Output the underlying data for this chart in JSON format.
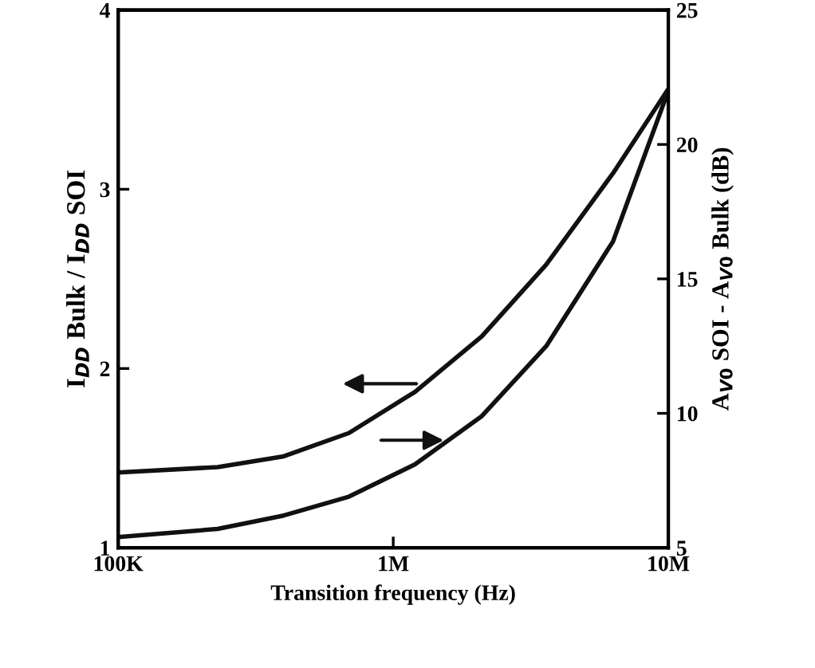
{
  "chart_data": {
    "type": "line",
    "xlabel": "Transition frequency (Hz)",
    "ylabel": "I$_{DD}$ Bulk / I$_{DD}$ SOI",
    "y2label": "A$_{V0}$ SOI - A$_{V0}$ Bulk (dB)",
    "log": "x",
    "xlim": [
      100000,
      10000000
    ],
    "xticks": [
      {
        "value": 100000,
        "label": "100K"
      },
      {
        "value": 1000000,
        "label": "1M"
      },
      {
        "value": 10000000,
        "label": "10M"
      }
    ],
    "ylim": [
      1,
      4
    ],
    "yticks": [
      1,
      2,
      3,
      4
    ],
    "y2lim": [
      5,
      25
    ],
    "y2ticks": [
      5,
      10,
      15,
      20,
      25
    ],
    "grid": false,
    "legend": false,
    "marker": "none",
    "line_style": "solid",
    "series": [
      {
        "color": "#111111",
        "x": [
          100000,
          230000,
          400000,
          690000,
          1200000,
          2100000,
          3600000,
          6300000,
          10000000
        ],
        "values": [
          1.42,
          1.45,
          1.51,
          1.64,
          1.87,
          2.18,
          2.58,
          3.09,
          3.56
        ]
      },
      {
        "color": "#111111",
        "axis": "y2",
        "x": [
          100000,
          230000,
          400000,
          690000,
          1200000,
          2100000,
          3600000,
          6300000,
          10000000
        ],
        "values": [
          5.4,
          5.7,
          6.2,
          6.9,
          8.1,
          9.9,
          12.5,
          16.4,
          22.0
        ]
      }
    ]
  }
}
